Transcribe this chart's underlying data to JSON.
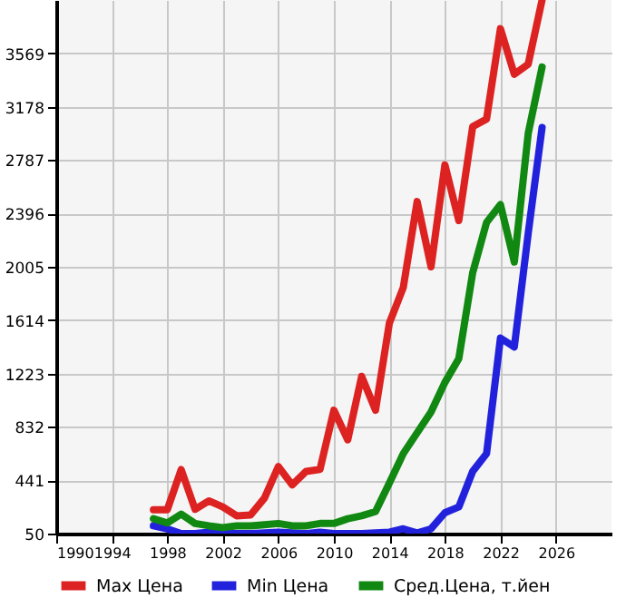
{
  "chart_data": {
    "type": "line",
    "x": [
      1997,
      1998,
      1999,
      2000,
      2001,
      2002,
      2003,
      2004,
      2005,
      2006,
      2007,
      2008,
      2009,
      2010,
      2011,
      2012,
      2013,
      2014,
      2015,
      2016,
      2017,
      2018,
      2019,
      2020,
      2021,
      2022,
      2023,
      2024,
      2025
    ],
    "series": [
      {
        "name": "Max Цена",
        "color": "#dd2222",
        "values": [
          225,
          225,
          519,
          228,
          290,
          245,
          180,
          186,
          310,
          541,
          407,
          506,
          520,
          954,
          737,
          1202,
          954,
          1593,
          1853,
          2483,
          2005,
          2752,
          2344,
          3032,
          3088,
          3750,
          3416,
          3490,
          3960
        ]
      },
      {
        "name": "Min Цена",
        "color": "#2222dd",
        "values": [
          107,
          85,
          50,
          50,
          60,
          55,
          50,
          50,
          55,
          60,
          55,
          50,
          60,
          50,
          50,
          50,
          55,
          60,
          85,
          55,
          85,
          203,
          245,
          506,
          636,
          1483,
          1418,
          2250,
          3026
        ]
      },
      {
        "name": "Сред.Цена, т.йен",
        "color": "#118811",
        "values": [
          159,
          128,
          193,
          124,
          107,
          94,
          107,
          107,
          115,
          124,
          107,
          107,
          124,
          124,
          159,
          180,
          211,
          420,
          636,
          789,
          941,
          1158,
          1332,
          1961,
          2330,
          2461,
          2040,
          2982,
          3469
        ]
      }
    ],
    "xlim": [
      1990,
      2030
    ],
    "xticks": [
      1990,
      1994,
      1998,
      2002,
      2006,
      2010,
      2014,
      2018,
      2022,
      2026
    ],
    "ylim": [
      50,
      3960
    ],
    "yticks": [
      50,
      441,
      832,
      1223,
      1614,
      2005,
      2396,
      2787,
      3178,
      3569
    ],
    "grid": true,
    "legend": "bottom"
  }
}
